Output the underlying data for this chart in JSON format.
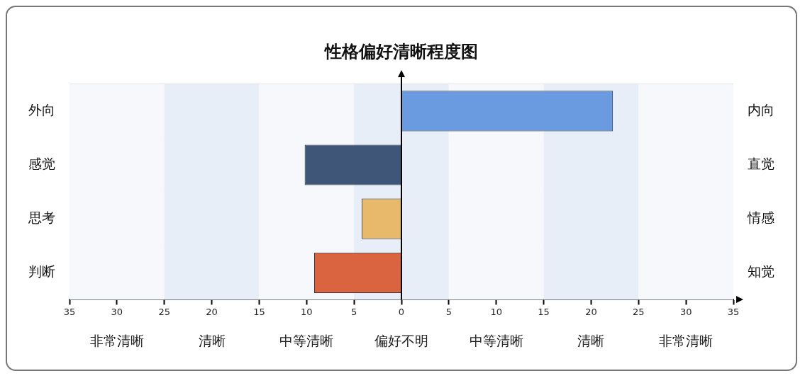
{
  "chart_data": {
    "type": "bar",
    "orientation": "horizontal",
    "title": "性格偏好清晰程度图",
    "categories": [
      "外向",
      "感觉",
      "思考",
      "判断"
    ],
    "y2_categories": [
      "内向",
      "直觉",
      "情感",
      "知觉"
    ],
    "values": [
      22.3,
      -10.2,
      -4.2,
      -9.2
    ],
    "colors": [
      "#6a9be0",
      "#3f5678",
      "#e8b96a",
      "#d9643f"
    ],
    "xlim": [
      -35,
      35
    ],
    "xticks": [
      {
        "value": -35,
        "label": "35"
      },
      {
        "value": -30,
        "label": "30"
      },
      {
        "value": -25,
        "label": "25"
      },
      {
        "value": -20,
        "label": "20"
      },
      {
        "value": -15,
        "label": "15"
      },
      {
        "value": -10,
        "label": "10"
      },
      {
        "value": -5,
        "label": "5"
      },
      0,
      5,
      10,
      15,
      20,
      25,
      30,
      35
    ],
    "bands": [
      {
        "axis": "x",
        "from": -35,
        "to": -25,
        "label": "非常清晰",
        "color": "#f6f8fb"
      },
      {
        "axis": "x",
        "from": -25,
        "to": -15,
        "label": "清晰",
        "color": "#e8eef7"
      },
      {
        "axis": "x",
        "from": -15,
        "to": -5,
        "label": "中等清晰",
        "color": "#f6f8fb"
      },
      {
        "axis": "x",
        "from": -5,
        "to": 5,
        "label": "偏好不明",
        "color": "#e8eef7"
      },
      {
        "axis": "x",
        "from": 5,
        "to": 15,
        "label": "中等清晰",
        "color": "#f6f8fb"
      },
      {
        "axis": "x",
        "from": 15,
        "to": 25,
        "label": "清晰",
        "color": "#e8eef7"
      },
      {
        "axis": "x",
        "from": 25,
        "to": 35,
        "label": "非常清晰",
        "color": "#f6f8fb"
      }
    ],
    "ref_lines": [
      {
        "axis": "x",
        "value": 0
      }
    ],
    "grid": "y",
    "legend": false
  }
}
